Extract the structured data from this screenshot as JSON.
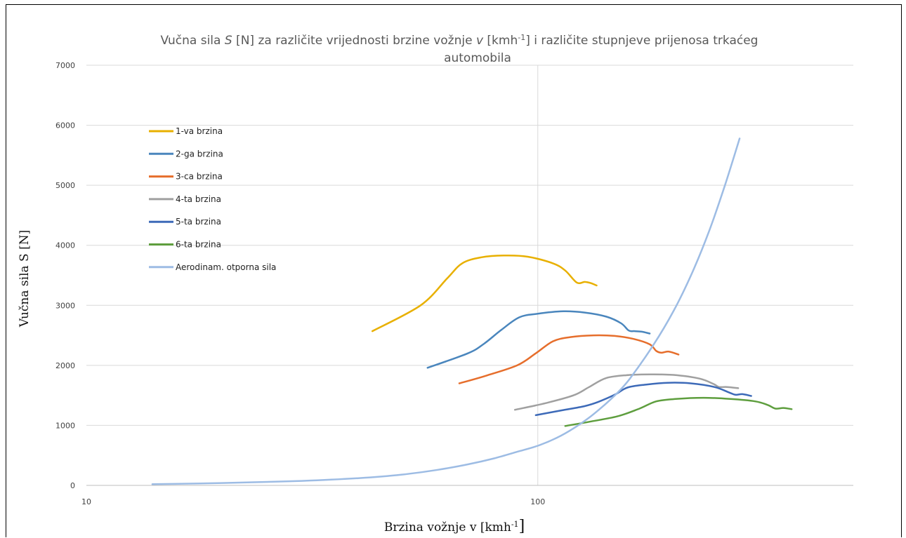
{
  "chart_data": {
    "type": "line",
    "title": {
      "line1_a": "Vučna sila ",
      "line1_S": "S",
      "line1_b": " [N] za različite vrijednosti brzine vožnje ",
      "line1_v": "v",
      "line1_c": " [kmh",
      "line1_sup": "-1",
      "line1_d": "]  i različite stupnjeve prijenosa trkaćeg",
      "line2": "automobila"
    },
    "xlabel": {
      "main": "Brzina vožnje v [kmh",
      "sup": "-1",
      "end": "]"
    },
    "ylabel": "Vučna sila S [N]",
    "x_scale": "log",
    "xlim": [
      10,
      500
    ],
    "ylim": [
      0,
      7000
    ],
    "x_ticks": [
      10,
      100
    ],
    "x_tick_labels": [
      "10",
      "100"
    ],
    "y_ticks": [
      0,
      1000,
      2000,
      3000,
      4000,
      5000,
      6000,
      7000
    ],
    "y_tick_labels": [
      "0",
      "1000",
      "2000",
      "3000",
      "4000",
      "5000",
      "6000",
      "7000"
    ],
    "grid": true,
    "legend_position": "left",
    "series": [
      {
        "name": "1-va brzina",
        "color": "#E8B000",
        "points": [
          [
            43,
            2570
          ],
          [
            55,
            3000
          ],
          [
            63,
            3450
          ],
          [
            68,
            3700
          ],
          [
            75,
            3800
          ],
          [
            84,
            3830
          ],
          [
            95,
            3810
          ],
          [
            108,
            3700
          ],
          [
            115,
            3580
          ],
          [
            122,
            3380
          ],
          [
            127,
            3390
          ],
          [
            131,
            3370
          ],
          [
            135,
            3330
          ]
        ]
      },
      {
        "name": "2-ga brzina",
        "color": "#4A86BD",
        "points": [
          [
            57,
            1960
          ],
          [
            70,
            2200
          ],
          [
            76,
            2360
          ],
          [
            83,
            2590
          ],
          [
            91,
            2800
          ],
          [
            100,
            2860
          ],
          [
            114,
            2900
          ],
          [
            127,
            2880
          ],
          [
            142,
            2810
          ],
          [
            153,
            2700
          ],
          [
            159,
            2580
          ],
          [
            164,
            2570
          ],
          [
            170,
            2560
          ],
          [
            177,
            2530
          ]
        ]
      },
      {
        "name": "3-ca brzina",
        "color": "#E66E2C",
        "points": [
          [
            67,
            1700
          ],
          [
            77,
            1830
          ],
          [
            90,
            2000
          ],
          [
            99,
            2200
          ],
          [
            108,
            2400
          ],
          [
            118,
            2470
          ],
          [
            133,
            2500
          ],
          [
            148,
            2490
          ],
          [
            163,
            2440
          ],
          [
            177,
            2350
          ],
          [
            183,
            2240
          ],
          [
            188,
            2210
          ],
          [
            195,
            2230
          ],
          [
            205,
            2180
          ]
        ]
      },
      {
        "name": "4-ta brzina",
        "color": "#A0A0A0",
        "points": [
          [
            89,
            1260
          ],
          [
            104,
            1370
          ],
          [
            120,
            1500
          ],
          [
            130,
            1640
          ],
          [
            142,
            1790
          ],
          [
            160,
            1840
          ],
          [
            178,
            1850
          ],
          [
            200,
            1840
          ],
          [
            228,
            1780
          ],
          [
            245,
            1690
          ],
          [
            252,
            1640
          ],
          [
            262,
            1640
          ],
          [
            278,
            1620
          ]
        ]
      },
      {
        "name": "5-ta brzina",
        "color": "#3D6AB8",
        "points": [
          [
            99,
            1170
          ],
          [
            113,
            1250
          ],
          [
            127,
            1320
          ],
          [
            136,
            1390
          ],
          [
            148,
            1510
          ],
          [
            158,
            1630
          ],
          [
            174,
            1680
          ],
          [
            194,
            1710
          ],
          [
            218,
            1700
          ],
          [
            246,
            1640
          ],
          [
            265,
            1550
          ],
          [
            274,
            1510
          ],
          [
            284,
            1520
          ],
          [
            297,
            1490
          ]
        ]
      },
      {
        "name": "6-ta brzina",
        "color": "#5E9E3E",
        "points": [
          [
            115,
            990
          ],
          [
            130,
            1060
          ],
          [
            150,
            1150
          ],
          [
            168,
            1280
          ],
          [
            183,
            1400
          ],
          [
            202,
            1440
          ],
          [
            233,
            1460
          ],
          [
            267,
            1440
          ],
          [
            303,
            1400
          ],
          [
            323,
            1340
          ],
          [
            336,
            1280
          ],
          [
            350,
            1290
          ],
          [
            365,
            1270
          ]
        ]
      },
      {
        "name": "Aerodinam. otporna sila",
        "color": "#9DBCE4",
        "points": [
          [
            14,
            20
          ],
          [
            20,
            40
          ],
          [
            30,
            75
          ],
          [
            40,
            120
          ],
          [
            50,
            180
          ],
          [
            60,
            260
          ],
          [
            70,
            350
          ],
          [
            80,
            450
          ],
          [
            90,
            560
          ],
          [
            100,
            660
          ],
          [
            110,
            790
          ],
          [
            120,
            950
          ],
          [
            130,
            1130
          ],
          [
            140,
            1330
          ],
          [
            150,
            1540
          ],
          [
            160,
            1780
          ],
          [
            180,
            2330
          ],
          [
            200,
            2910
          ],
          [
            220,
            3550
          ],
          [
            240,
            4250
          ],
          [
            260,
            5010
          ],
          [
            280,
            5780
          ]
        ]
      }
    ]
  }
}
